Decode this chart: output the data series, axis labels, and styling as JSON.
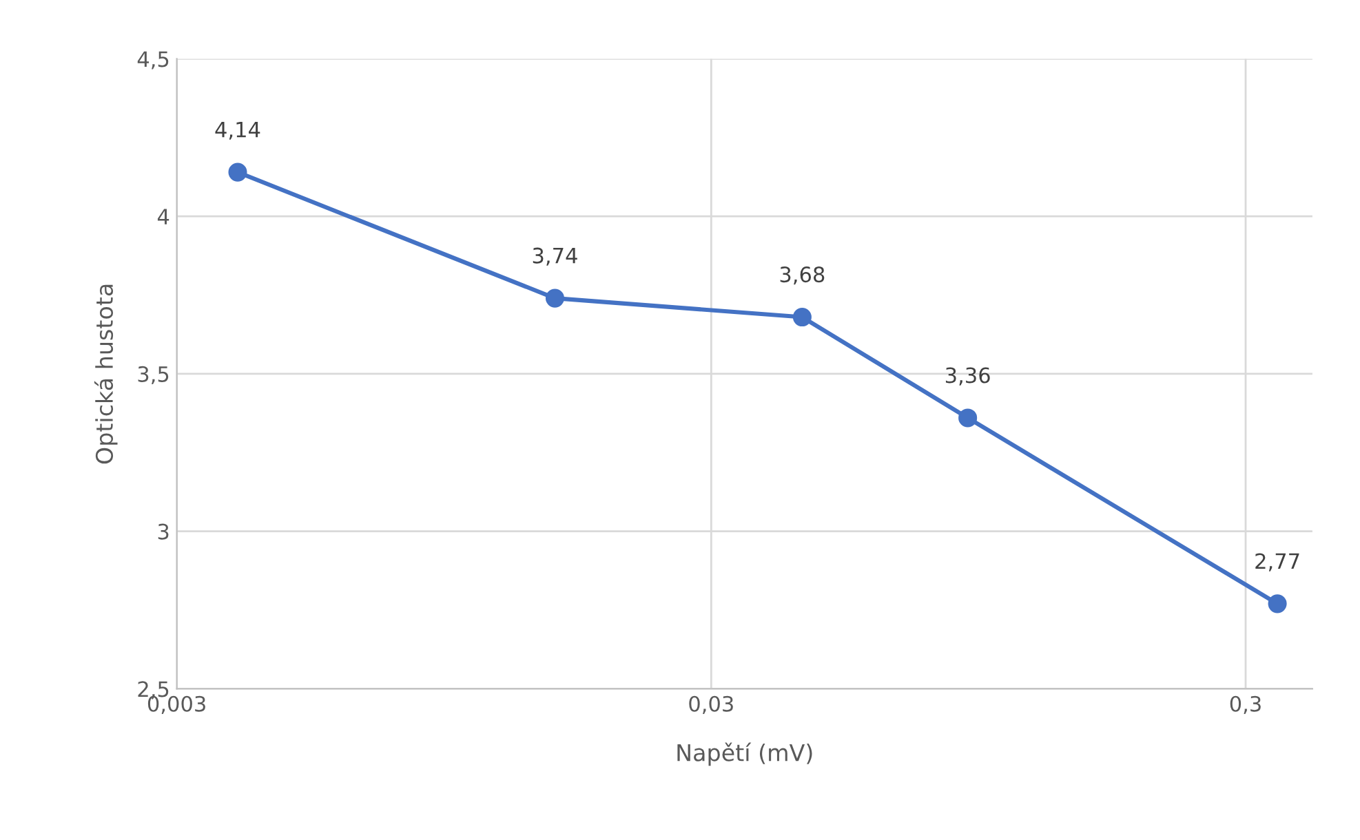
{
  "chart_data": {
    "type": "line",
    "xlabel": "Napětí (mV)",
    "ylabel": "Optická hustota",
    "x": [
      0.0039,
      0.0153,
      0.0444,
      0.0906,
      0.344
    ],
    "series": [
      {
        "color": "#4472c4",
        "values": [
          4.14,
          3.74,
          3.68,
          3.36,
          2.77
        ],
        "value_labels": [
          "4,14",
          "3,74",
          "3,68",
          "3,36",
          "2,77"
        ]
      }
    ],
    "log": "x",
    "xlim": [
      0.003,
      0.4
    ],
    "xticks": [
      {
        "value": 0.003,
        "label": "0,003"
      },
      {
        "value": 0.03,
        "label": "0,03"
      },
      {
        "value": 0.3,
        "label": "0,3"
      }
    ],
    "ylim": [
      2.5,
      4.5
    ],
    "yticks": [
      {
        "value": 2.5,
        "label": "2,5"
      },
      3,
      {
        "value": 3.5,
        "label": "3,5"
      },
      4,
      {
        "value": 4.5,
        "label": "4,5"
      }
    ],
    "grid": true,
    "marker": "circle",
    "line_style": "solid"
  }
}
